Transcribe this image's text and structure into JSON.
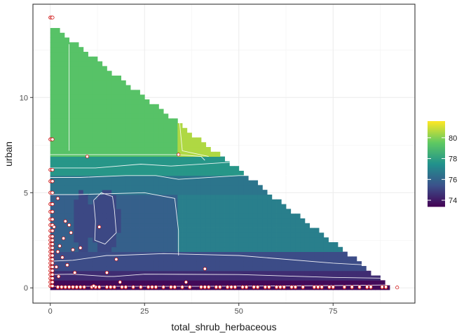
{
  "chart_data": {
    "type": "heatmap",
    "title": "",
    "xlabel": "total_shrub_herbaceous",
    "ylabel": "urban",
    "xlim": [
      -4.6,
      96.7
    ],
    "ylim": [
      -0.8,
      14.9
    ],
    "x_ticks": [
      0,
      25,
      50,
      75
    ],
    "x_tick_labels": [
      "0",
      "25",
      "50",
      "75"
    ],
    "y_ticks": [
      0,
      5,
      10
    ],
    "y_tick_labels": [
      "0",
      "5",
      "10"
    ],
    "grid": true,
    "colorscale": "viridis",
    "legend": {
      "position": "right",
      "min": 73.4,
      "max": 81.6,
      "ticks": [
        74,
        76,
        78,
        80
      ],
      "tick_labels": [
        "74",
        "76",
        "78",
        "80"
      ]
    },
    "surface": {
      "grid_step": 1.25,
      "triangle_edge": {
        "x_at_top": 0,
        "y_top": 13.75,
        "x_at_bottom": 90
      },
      "regions": [
        {
          "y_from": 7.0,
          "y_to": 14.0,
          "x_from": 0,
          "x_to": 34,
          "value": 79.3
        },
        {
          "y_from": 7.0,
          "y_to": 14.0,
          "x_from": 34,
          "x_to": 90,
          "value": 80.6
        },
        {
          "y_from": 6.0,
          "y_to": 7.0,
          "x_from": 0,
          "x_to": 90,
          "value": 77.7
        },
        {
          "y_from": 5.0,
          "y_to": 6.0,
          "x_from": 0,
          "x_to": 90,
          "value": 76.6
        },
        {
          "y_from": 2.0,
          "y_to": 5.0,
          "x_from": 0,
          "x_to": 34,
          "value": 75.9
        },
        {
          "y_from": 2.0,
          "y_to": 5.0,
          "x_from": 34,
          "x_to": 90,
          "value": 76.9
        },
        {
          "y_from": 1.0,
          "y_to": 2.0,
          "x_from": 0,
          "x_to": 90,
          "value": 75.3
        },
        {
          "y_from": 0.3,
          "y_to": 1.0,
          "x_from": 0,
          "x_to": 90,
          "value": 74.5
        },
        {
          "y_from": -0.1,
          "y_to": 0.3,
          "x_from": 0,
          "x_to": 90,
          "value": 73.6
        }
      ],
      "islands": [
        {
          "cx": 14.5,
          "cy": 3.5,
          "rx": 4.0,
          "ry": 1.6,
          "value": 75.2
        },
        {
          "cx": 8.5,
          "cy": 3.5,
          "rx": 2.5,
          "ry": 1.6,
          "value": 75.2
        }
      ]
    },
    "contours": [
      {
        "level": 74.2,
        "points": [
          [
            0,
            0.08
          ],
          [
            40,
            0.08
          ],
          [
            60,
            0.1
          ],
          [
            75,
            0.12
          ],
          [
            88,
            0.15
          ],
          [
            90,
            0.15
          ]
        ]
      },
      {
        "level": 74.8,
        "points": [
          [
            0,
            0.7
          ],
          [
            6,
            0.72
          ],
          [
            15,
            0.6
          ],
          [
            17,
            0.6
          ],
          [
            25,
            0.72
          ],
          [
            50,
            0.7
          ],
          [
            75,
            0.55
          ],
          [
            90,
            0.5
          ]
        ]
      },
      {
        "level": 75.4,
        "points": [
          [
            0,
            1.4
          ],
          [
            6,
            1.45
          ],
          [
            15,
            1.7
          ],
          [
            17,
            1.7
          ],
          [
            30,
            1.8
          ],
          [
            50,
            1.7
          ],
          [
            75,
            1.3
          ],
          [
            84,
            1.2
          ]
        ]
      },
      {
        "level": 76.2,
        "points": [
          [
            0,
            4.9
          ],
          [
            7,
            4.9
          ],
          [
            25,
            5.0
          ],
          [
            33,
            4.7
          ],
          [
            34,
            3.0
          ],
          [
            34,
            1.7
          ]
        ]
      },
      {
        "level": 76.8,
        "points": [
          [
            0,
            5.8
          ],
          [
            8,
            5.8
          ],
          [
            20,
            5.9
          ],
          [
            28,
            5.9
          ],
          [
            34,
            5.7
          ],
          [
            50,
            5.9
          ],
          [
            70,
            5.9
          ],
          [
            73,
            5.2
          ]
        ]
      },
      {
        "level": 77.5,
        "points": [
          [
            0,
            6.3
          ],
          [
            12,
            6.3
          ],
          [
            24,
            6.5
          ],
          [
            32,
            6.4
          ],
          [
            48,
            6.6
          ],
          [
            53,
            6.3
          ]
        ]
      },
      {
        "level": 78.5,
        "points": [
          [
            0,
            7.0
          ],
          [
            34,
            7.0
          ],
          [
            40,
            6.9
          ],
          [
            41,
            6.7
          ]
        ]
      },
      {
        "level": 79.5,
        "points": [
          [
            34,
            9.3
          ],
          [
            35,
            7.2
          ],
          [
            42,
            6.9
          ]
        ]
      },
      {
        "level": 79.0,
        "points": [
          [
            5,
            12.8
          ],
          [
            5,
            7.2
          ]
        ]
      },
      {
        "level": 75.5,
        "points": [
          [
            11.5,
            4.6
          ],
          [
            12,
            3.5
          ],
          [
            11.8,
            2.5
          ],
          [
            14.5,
            2.3
          ],
          [
            17.5,
            2.9
          ],
          [
            17.0,
            4.1
          ],
          [
            16.5,
            4.8
          ],
          [
            13.5,
            5.0
          ],
          [
            11.5,
            4.6
          ]
        ]
      }
    ],
    "points": {
      "border_color": "#ffffff",
      "core_color": "#cc0000",
      "strip_y": [
        0.02,
        0.05
      ],
      "strip_x": [
        2,
        3,
        4,
        5,
        6,
        7,
        8,
        9,
        11,
        12,
        13,
        15,
        16,
        17,
        19,
        20,
        22,
        24,
        26,
        27,
        28,
        30,
        32,
        33,
        35,
        37,
        40,
        41,
        42,
        44,
        45,
        47,
        48,
        49,
        51,
        52,
        54,
        55,
        57,
        58,
        60,
        61,
        62,
        64,
        65,
        67,
        70,
        71,
        72,
        74,
        75,
        78,
        80,
        82,
        84,
        85,
        88,
        89
      ],
      "column_x": [
        0,
        0.3,
        0.6
      ],
      "column_y": [
        0.1,
        0.3,
        0.5,
        0.7,
        0.9,
        1.1,
        1.3,
        1.5,
        1.7,
        1.9,
        2.1,
        2.3,
        2.5,
        2.7,
        3.0,
        3.3,
        3.6,
        4.0,
        4.4,
        5.0,
        5.6,
        6.2,
        7.8,
        14.2
      ],
      "scatter": [
        [
          2.0,
          4.7
        ],
        [
          4.0,
          3.5
        ],
        [
          5.0,
          3.3
        ],
        [
          6.0,
          2.0
        ],
        [
          5.5,
          2.9
        ],
        [
          3.5,
          2.6
        ],
        [
          2.0,
          1.9
        ],
        [
          4.5,
          1.2
        ],
        [
          6.5,
          0.8
        ],
        [
          8.0,
          2.1
        ],
        [
          9.8,
          6.9
        ],
        [
          13.0,
          3.2
        ],
        [
          15.0,
          0.8
        ],
        [
          17.5,
          1.5
        ],
        [
          18.5,
          0.3
        ],
        [
          34.0,
          7.0
        ],
        [
          41.0,
          1.0
        ],
        [
          1.0,
          3.2
        ],
        [
          2.5,
          2.2
        ],
        [
          3.2,
          1.6
        ],
        [
          1.6,
          1.1
        ],
        [
          2.2,
          0.6
        ],
        [
          11.5,
          0.1
        ],
        [
          36.0,
          0.3
        ],
        [
          92.0,
          0.02
        ]
      ]
    }
  }
}
